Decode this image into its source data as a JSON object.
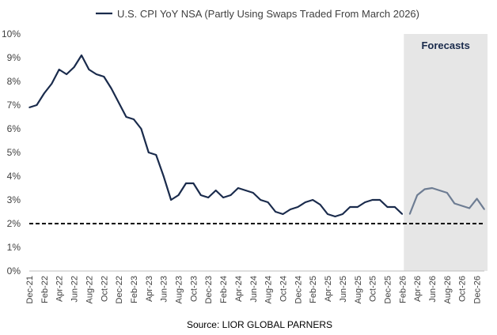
{
  "chart_data": {
    "type": "line",
    "title": "",
    "legend": {
      "label": "U.S. CPI YoY NSA (Partly Using Swaps Traded From March 2026)",
      "placement": "top-center"
    },
    "source": "Source: LIOR GLOBAL PARNERS",
    "forecast_label": "Forecasts",
    "forecast_start_index": 50,
    "ylim": [
      0,
      10
    ],
    "y_ticks": [
      "0%",
      "1%",
      "2%",
      "3%",
      "4%",
      "5%",
      "6%",
      "7%",
      "8%",
      "9%",
      "10%"
    ],
    "x_tick_labels": [
      "Dec-21",
      "Feb-22",
      "Apr-22",
      "Jun-22",
      "Aug-22",
      "Oct-22",
      "Dec-22",
      "Feb-23",
      "Apr-23",
      "Jun-23",
      "Aug-23",
      "Oct-23",
      "Dec-23",
      "Feb-24",
      "Apr-24",
      "Jun-24",
      "Aug-24",
      "Oct-24",
      "Dec-24",
      "Feb-25",
      "Apr-25",
      "Jun-25",
      "Aug-25",
      "Oct-25",
      "Dec-25",
      "Feb-26",
      "Apr-26",
      "Jun-26",
      "Aug-26",
      "Oct-26",
      "Dec-26"
    ],
    "target_line": 2.0,
    "series": [
      {
        "name": "U.S. CPI YoY NSA (Partly Using Swaps Traded From March 2026)",
        "start": "Dec-21",
        "values": [
          6.9,
          7.0,
          7.5,
          7.9,
          8.5,
          8.3,
          8.6,
          9.1,
          8.5,
          8.3,
          8.2,
          7.7,
          7.1,
          6.5,
          6.4,
          6.0,
          5.0,
          4.9,
          4.0,
          3.0,
          3.2,
          3.7,
          3.7,
          3.2,
          3.1,
          3.4,
          3.1,
          3.2,
          3.5,
          3.4,
          3.3,
          3.0,
          2.9,
          2.5,
          2.4,
          2.6,
          2.7,
          2.9,
          3.0,
          2.8,
          2.4,
          2.3,
          2.4,
          2.7,
          2.7,
          2.9,
          3.0,
          3.0,
          2.7,
          2.7,
          2.4,
          2.4,
          3.2,
          3.45,
          3.5,
          3.4,
          3.3,
          2.85,
          2.75,
          2.65,
          3.05,
          2.6
        ]
      }
    ],
    "colors": {
      "actual": "#1a2b4c",
      "forecast": "#6e7d93",
      "shade": "#e6e6e6",
      "target": "#000000",
      "axis": "#bfbfbf",
      "text": "#404040"
    }
  }
}
